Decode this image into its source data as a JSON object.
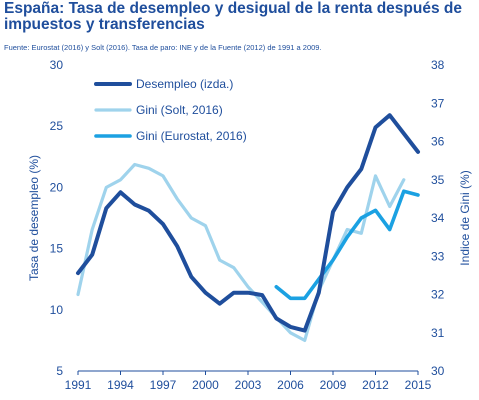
{
  "header": {
    "title": "España: Tasa de desempleo y desigual de la renta después de impuestos y transferencias",
    "source": "Fuente: Eurostat (2016) y Solt (2016). Tasa de paro: INE y de la Fuente (2012) de 1991 a 2009."
  },
  "colors": {
    "text": "#1f4e9c",
    "axis": "#1f4e9c",
    "desempleo": "#1f4e9c",
    "gini_solt": "#9fd3ec",
    "gini_eurostat": "#1ba1e2"
  },
  "chart_data": {
    "type": "line",
    "title": "España: Tasa de desempleo y desigual de la renta después de impuestos y transferencias",
    "ylabel": "Tasa de desempleo (%)",
    "y2label": "Indice de Gini (%)",
    "ylim": [
      5,
      30
    ],
    "y2lim": [
      30,
      38
    ],
    "xlim": [
      1991,
      2015
    ],
    "x_ticks": [
      1991,
      1994,
      1997,
      2000,
      2003,
      2006,
      2009,
      2012,
      2015
    ],
    "y_ticks": [
      5,
      10,
      15,
      20,
      25,
      30
    ],
    "y2_ticks": [
      30,
      31,
      32,
      33,
      34,
      35,
      36,
      37,
      38
    ],
    "legend_position": "top-left",
    "grid": false,
    "series": [
      {
        "name": "Desempleo (izda.)",
        "axis": "left",
        "color_key": "desempleo",
        "x": [
          1991,
          1992,
          1993,
          1994,
          1995,
          1996,
          1997,
          1998,
          1999,
          2000,
          2001,
          2002,
          2003,
          2004,
          2005,
          2006,
          2007,
          2008,
          2009,
          2010,
          2011,
          2012,
          2013,
          2014,
          2015
        ],
        "values": [
          13.0,
          14.5,
          18.3,
          19.6,
          18.6,
          18.1,
          17.0,
          15.2,
          12.7,
          11.4,
          10.5,
          11.4,
          11.4,
          11.2,
          9.3,
          8.6,
          8.3,
          11.4,
          18.0,
          20.0,
          21.5,
          24.9,
          25.9,
          24.4,
          22.9
        ]
      },
      {
        "name": "Gini (Solt, 2016)",
        "axis": "right",
        "color_key": "gini_solt",
        "x": [
          1991,
          1992,
          1993,
          1994,
          1995,
          1996,
          1997,
          1998,
          1999,
          2000,
          2001,
          2002,
          2003,
          2004,
          2005,
          2006,
          2007,
          2008,
          2009,
          2010,
          2011,
          2012,
          2013,
          2014
        ],
        "values": [
          32.0,
          33.7,
          34.8,
          35.0,
          35.4,
          35.3,
          35.1,
          34.5,
          34.0,
          33.8,
          32.9,
          32.7,
          32.2,
          31.8,
          31.4,
          31.0,
          30.8,
          32.1,
          32.9,
          33.7,
          33.6,
          35.1,
          34.3,
          35.0
        ]
      },
      {
        "name": "Gini (Eurostat, 2016)",
        "axis": "right",
        "color_key": "gini_eurostat",
        "x": [
          2005,
          2006,
          2007,
          2008,
          2009,
          2010,
          2011,
          2012,
          2013,
          2014,
          2015
        ],
        "values": [
          32.2,
          31.9,
          31.9,
          32.4,
          32.9,
          33.5,
          34.0,
          34.2,
          33.7,
          34.7,
          34.6
        ]
      }
    ]
  }
}
